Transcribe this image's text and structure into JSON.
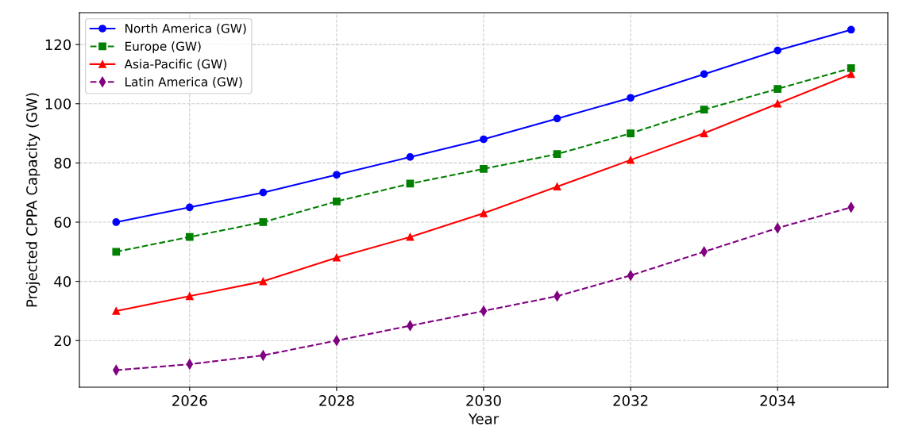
{
  "chart_data": {
    "type": "line",
    "xlabel": "Year",
    "ylabel": "Projected CPPA Capacity (GW)",
    "x": [
      2025,
      2026,
      2027,
      2028,
      2029,
      2030,
      2031,
      2032,
      2033,
      2034,
      2035
    ],
    "series": [
      {
        "name": "North America (GW)",
        "color": "#0000ff",
        "marker": "circle",
        "line_style": "solid",
        "values": [
          60,
          65,
          70,
          76,
          82,
          88,
          95,
          102,
          110,
          118,
          125
        ]
      },
      {
        "name": "Europe (GW)",
        "color": "#008000",
        "marker": "square",
        "line_style": "dashed",
        "values": [
          50,
          55,
          60,
          67,
          73,
          78,
          83,
          90,
          98,
          105,
          112
        ]
      },
      {
        "name": "Asia-Pacific (GW)",
        "color": "#ff0000",
        "marker": "triangle",
        "line_style": "solid",
        "values": [
          30,
          35,
          40,
          48,
          55,
          63,
          72,
          81,
          90,
          100,
          110
        ]
      },
      {
        "name": "Latin America (GW)",
        "color": "#800080",
        "marker": "diamond",
        "line_style": "dashed",
        "values": [
          10,
          12,
          15,
          20,
          25,
          30,
          35,
          42,
          50,
          58,
          65
        ]
      }
    ],
    "xlim": [
      2024.5,
      2035.5
    ],
    "xticks": [
      2026,
      2028,
      2030,
      2032,
      2034
    ],
    "ylim": [
      4.25,
      130.75
    ],
    "yticks": [
      20,
      40,
      60,
      80,
      100,
      120
    ],
    "grid": true,
    "legend": "top left"
  }
}
